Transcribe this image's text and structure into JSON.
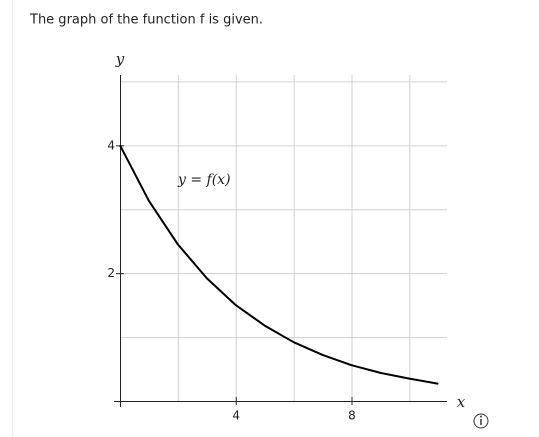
{
  "chart_data": {
    "type": "line",
    "title": "The graph of the function f is given.",
    "xlabel": "x",
    "ylabel": "y",
    "annotation": "y = f(x)",
    "x": [
      0,
      1,
      2,
      3,
      4,
      5,
      6,
      7,
      8,
      9,
      10,
      11
    ],
    "series": [
      {
        "color": "#000000",
        "values": [
          4,
          3.13,
          2.45,
          1.92,
          1.5,
          1.18,
          0.92,
          0.72,
          0.56,
          0.44,
          0.35,
          0.27
        ]
      }
    ],
    "xlim": [
      0,
      11.3
    ],
    "ylim": [
      0,
      5.1
    ],
    "xticks": [
      4,
      8
    ],
    "yticks": [
      2,
      4
    ],
    "xgrid": [
      2,
      4,
      6,
      8,
      10
    ],
    "ygrid": [
      1,
      2,
      3,
      4,
      5
    ],
    "grid": true
  }
}
